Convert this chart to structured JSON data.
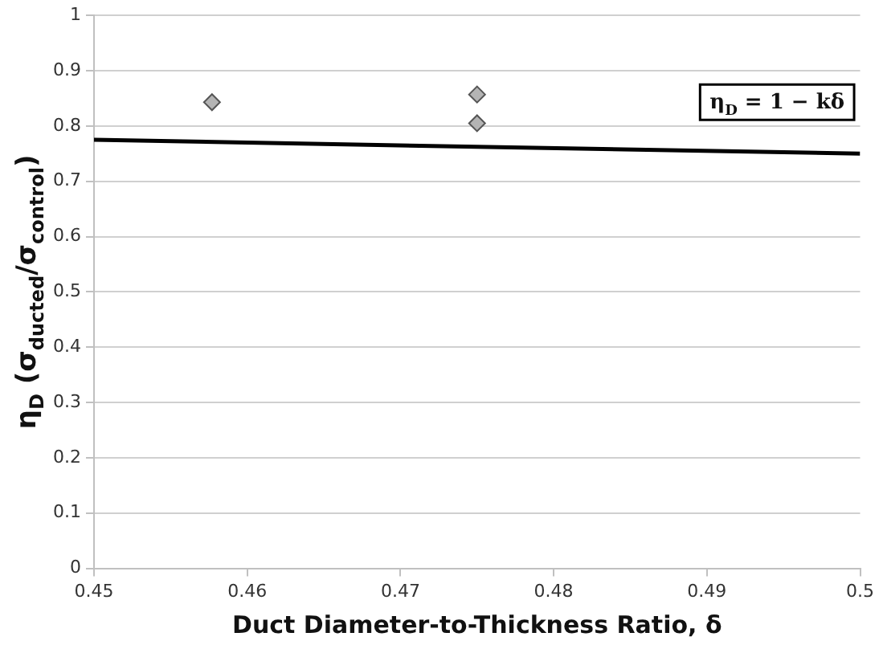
{
  "chart_data": {
    "type": "scatter",
    "xlabel": "Duct Diameter-to-Thickness Ratio, δ",
    "ylabel": "η$_{D}$ (σ$_{ducted}$/σ$_{control}$)",
    "series": [
      {
        "color": "#b4b4b4",
        "x": [
          0.4577,
          0.475,
          0.475
        ],
        "values": [
          0.843,
          0.857,
          0.805
        ],
        "marker": "diamond"
      },
      {
        "type": "line",
        "name": "η$_{D}$ = 1 − kδ",
        "color": "#000000",
        "x": [
          0.45,
          0.5
        ],
        "values": [
          0.775,
          0.75
        ],
        "marker": "none"
      }
    ],
    "xlim": [
      0.45,
      0.5
    ],
    "xticks": [
      0.45,
      0.46,
      0.47,
      0.48,
      0.49,
      0.5
    ],
    "ylim": [
      0,
      1
    ],
    "yticks": [
      0,
      0.1,
      0.2,
      0.3,
      0.4,
      0.5,
      0.6,
      0.7,
      0.8,
      0.9,
      1
    ],
    "grid": "y",
    "legend": false
  }
}
